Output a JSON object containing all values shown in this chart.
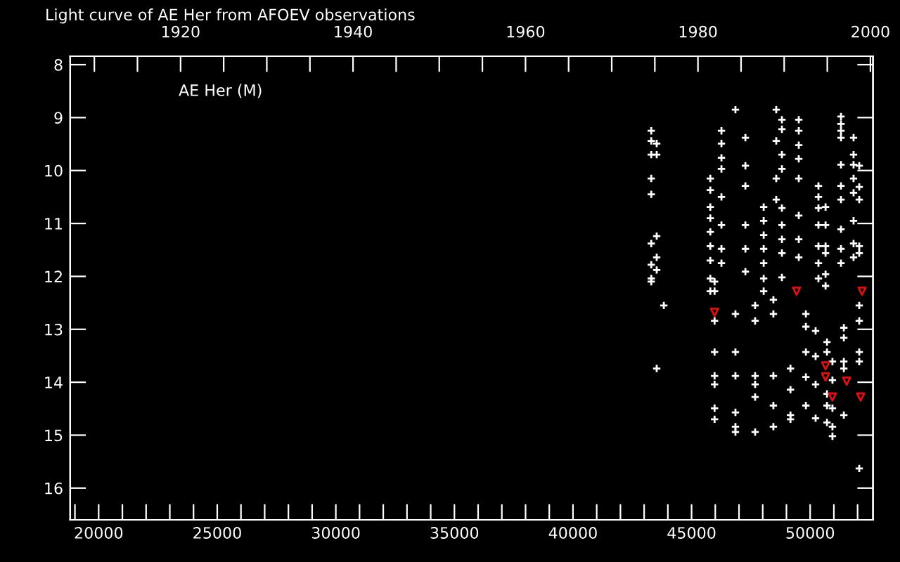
{
  "chart_data": {
    "type": "scatter",
    "title": "Light curve of AE Her from AFOEV observations",
    "annotations": [
      "AE Her (M)"
    ],
    "xlim": [
      18800,
      52650
    ],
    "ylim": [
      16.6,
      7.84
    ],
    "xticks": [
      {
        "value": 19000,
        "label": null
      },
      20000,
      {
        "value": 21000,
        "label": null
      },
      {
        "value": 22000,
        "label": null
      },
      {
        "value": 23000,
        "label": null
      },
      {
        "value": 24000,
        "label": null
      },
      25000,
      {
        "value": 26000,
        "label": null
      },
      {
        "value": 27000,
        "label": null
      },
      {
        "value": 28000,
        "label": null
      },
      {
        "value": 29000,
        "label": null
      },
      30000,
      {
        "value": 31000,
        "label": null
      },
      {
        "value": 32000,
        "label": null
      },
      {
        "value": 33000,
        "label": null
      },
      {
        "value": 34000,
        "label": null
      },
      35000,
      {
        "value": 36000,
        "label": null
      },
      {
        "value": 37000,
        "label": null
      },
      {
        "value": 38000,
        "label": null
      },
      {
        "value": 39000,
        "label": null
      },
      40000,
      {
        "value": 41000,
        "label": null
      },
      {
        "value": 42000,
        "label": null
      },
      {
        "value": 43000,
        "label": null
      },
      {
        "value": 44000,
        "label": null
      },
      45000,
      {
        "value": 46000,
        "label": null
      },
      {
        "value": 47000,
        "label": null
      },
      {
        "value": 48000,
        "label": null
      },
      {
        "value": 49000,
        "label": null
      },
      50000,
      {
        "value": 51000,
        "label": null
      },
      {
        "value": 52000,
        "label": null
      }
    ],
    "yticks": [
      8,
      9,
      10,
      11,
      12,
      13,
      14,
      15,
      16
    ],
    "x2lim": [
      1907.2,
      2000.3
    ],
    "x2ticks": [
      {
        "value": 1910,
        "label": null
      },
      {
        "value": 1915,
        "label": null
      },
      1920,
      {
        "value": 1925,
        "label": null
      },
      {
        "value": 1930,
        "label": null
      },
      {
        "value": 1935,
        "label": null
      },
      1940,
      {
        "value": 1945,
        "label": null
      },
      {
        "value": 1950,
        "label": null
      },
      {
        "value": 1955,
        "label": null
      },
      1960,
      {
        "value": 1965,
        "label": null
      },
      {
        "value": 1970,
        "label": null
      },
      {
        "value": 1975,
        "label": null
      },
      1980,
      {
        "value": 1985,
        "label": null
      },
      {
        "value": 1990,
        "label": null
      },
      {
        "value": 1995,
        "label": null
      },
      2000
    ],
    "grid": false,
    "series": [
      {
        "color": "#ffffff",
        "marker": "cross",
        "x": [
          43300,
          43300,
          43300,
          43530,
          43530,
          43300,
          43300,
          43530,
          43300,
          43530,
          43300,
          43530,
          43300,
          43300,
          43830,
          43530,
          45790,
          45790,
          45790,
          45790,
          45790,
          45790,
          45790,
          45790,
          45790,
          46260,
          46260,
          46260,
          46260,
          46260,
          46260,
          46260,
          46260,
          46850,
          47270,
          47270,
          47270,
          47270,
          47270,
          47270,
          48040,
          48040,
          48040,
          48040,
          48040,
          48040,
          48040,
          48570,
          48570,
          48570,
          48570,
          48810,
          48810,
          48810,
          48810,
          48810,
          48810,
          48810,
          48810,
          48810,
          49520,
          49520,
          49520,
          49520,
          49520,
          49520,
          49520,
          49520,
          50350,
          50350,
          50350,
          50350,
          50350,
          50350,
          50350,
          50650,
          50650,
          50650,
          50650,
          50650,
          50650,
          51300,
          51300,
          51300,
          51300,
          51300,
          51300,
          51300,
          51300,
          51300,
          51300,
          51830,
          51830,
          51830,
          51830,
          51830,
          51830,
          51830,
          51830,
          52070,
          52070,
          52070,
          52070,
          52070,
          45970,
          45970,
          45970,
          45970,
          45970,
          45970,
          45970,
          45970,
          46850,
          46850,
          46850,
          46850,
          46850,
          46850,
          47680,
          47680,
          47680,
          47680,
          47680,
          47680,
          48450,
          48450,
          48450,
          48450,
          48450,
          49170,
          49170,
          49170,
          49170,
          49820,
          49820,
          49820,
          49820,
          49820,
          50230,
          50230,
          50230,
          50230,
          50710,
          50710,
          50710,
          50710,
          50710,
          50940,
          50940,
          50940,
          50940,
          50940,
          51420,
          51420,
          51420,
          51420,
          51420,
          52070,
          52070,
          52070,
          52070,
          52070
        ],
        "values": [
          9.25,
          9.44,
          9.7,
          9.49,
          9.7,
          10.15,
          10.45,
          11.24,
          11.38,
          11.64,
          11.78,
          11.88,
          12.04,
          12.1,
          12.55,
          13.74,
          10.15,
          10.37,
          10.69,
          10.9,
          11.16,
          11.43,
          11.7,
          12.04,
          12.28,
          9.25,
          9.49,
          9.76,
          9.97,
          10.5,
          11.03,
          11.48,
          11.75,
          8.85,
          9.38,
          9.91,
          10.29,
          11.03,
          11.48,
          11.91,
          10.69,
          10.95,
          11.22,
          11.48,
          11.75,
          12.04,
          12.28,
          8.85,
          9.44,
          10.15,
          10.55,
          9.04,
          9.22,
          9.7,
          9.97,
          10.71,
          11.03,
          11.3,
          11.56,
          12.02,
          9.04,
          9.25,
          9.52,
          9.78,
          10.15,
          10.85,
          11.3,
          11.64,
          10.29,
          10.5,
          10.71,
          11.03,
          11.43,
          11.75,
          12.04,
          10.69,
          11.03,
          11.43,
          11.56,
          11.96,
          12.18,
          8.98,
          9.12,
          9.25,
          9.38,
          9.89,
          10.29,
          10.55,
          11.11,
          11.48,
          11.75,
          9.38,
          9.7,
          9.89,
          10.15,
          10.42,
          10.95,
          11.38,
          11.64,
          9.91,
          10.31,
          10.55,
          11.43,
          11.56,
          12.1,
          12.28,
          12.84,
          13.43,
          13.88,
          14.04,
          14.49,
          14.7,
          12.71,
          13.43,
          13.88,
          14.57,
          14.84,
          14.94,
          12.55,
          12.84,
          13.88,
          14.04,
          14.28,
          14.94,
          12.44,
          12.71,
          13.88,
          14.44,
          14.84,
          13.74,
          14.14,
          14.62,
          14.7,
          12.71,
          12.95,
          13.43,
          13.9,
          14.44,
          13.03,
          13.51,
          14.04,
          14.68,
          13.24,
          13.43,
          14.22,
          14.44,
          14.76,
          13.61,
          13.96,
          14.49,
          14.84,
          15.02,
          12.97,
          13.16,
          13.61,
          13.74,
          14.62,
          12.55,
          12.84,
          13.43,
          13.61,
          15.63
        ]
      },
      {
        "color": "#e01010",
        "marker": "triangle",
        "x": [
          45970,
          49430,
          50650,
          50650,
          51540,
          50940,
          52130,
          52190
        ],
        "values": [
          12.68,
          12.28,
          13.69,
          13.9,
          13.98,
          14.28,
          14.28,
          12.28
        ]
      }
    ]
  }
}
